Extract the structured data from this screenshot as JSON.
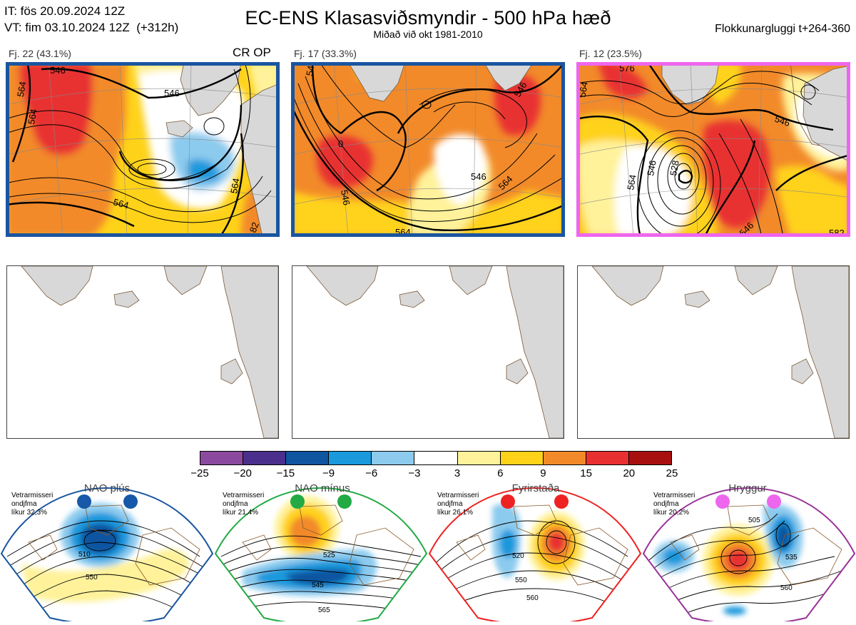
{
  "header": {
    "init_line": "IT: fös 20.09.2024 12Z",
    "valid_line": "VT: fim 03.10.2024 12Z  (+312h)",
    "title": "EC-ENS Klasasviðsmyndir - 500 hPa hæð",
    "subtitle": "Miðað við okt 1981-2010",
    "window": "Flokkunargluggi t+264-360"
  },
  "clusters": [
    {
      "label": "Fj. 22 (43.1%)",
      "tag": "CR OP",
      "frame_color": "#1a55a0",
      "contour_labels": [
        "546",
        "546",
        "564",
        "564",
        "564",
        "564",
        "82"
      ]
    },
    {
      "label": "Fj. 17 (33.3%)",
      "tag": "",
      "frame_color": "#1a55a0",
      "contour_labels": [
        "546",
        "546",
        "546",
        "564",
        "564",
        "546",
        "0"
      ]
    },
    {
      "label": "Fj. 12 (23.5%)",
      "tag": "",
      "frame_color": "#ee66ee",
      "contour_labels": [
        "546",
        "546",
        "564",
        "528",
        "546",
        "564",
        "576",
        "582"
      ]
    }
  ],
  "colorbar": {
    "ticks": [
      "−25",
      "−20",
      "−15",
      "−9",
      "−6",
      "−3",
      "3",
      "6",
      "9",
      "15",
      "20",
      "25"
    ],
    "colors": [
      "#8c4a9e",
      "#4a2f8c",
      "#0f55a0",
      "#1a99dd",
      "#8ccbee",
      "#ffffff",
      "#fff29a",
      "#ffd21a",
      "#f28a2a",
      "#e83030",
      "#a81010"
    ]
  },
  "regimes": [
    {
      "name": "NAO plús",
      "note_lines": [
        "Vetrarmisseri",
        "ondjfma",
        "líkur 32,3%"
      ],
      "dot_color": "#1858a8",
      "frame_color": "#1a55a0",
      "contour_labels": [
        "510",
        "550"
      ]
    },
    {
      "name": "NAO mínus",
      "note_lines": [
        "Vetrarmisseri",
        "ondjfma",
        "líkur 21,4%"
      ],
      "dot_color": "#22aa44",
      "frame_color": "#22aa44",
      "contour_labels": [
        "525",
        "545",
        "565"
      ]
    },
    {
      "name": "Fyrirstaða",
      "note_lines": [
        "Vetrarmisseri",
        "ondjfma",
        "líkur 26,1%"
      ],
      "dot_color": "#ee2222",
      "frame_color": "#ee2222",
      "contour_labels": [
        "520",
        "550",
        "560"
      ]
    },
    {
      "name": "Hryggur",
      "note_lines": [
        "Vetrarmisseri",
        "ondjfma",
        "líkur 20,2%"
      ],
      "dot_color": "#ee66ee",
      "frame_color": "#993399",
      "contour_labels": [
        "505",
        "535",
        "560"
      ]
    }
  ]
}
